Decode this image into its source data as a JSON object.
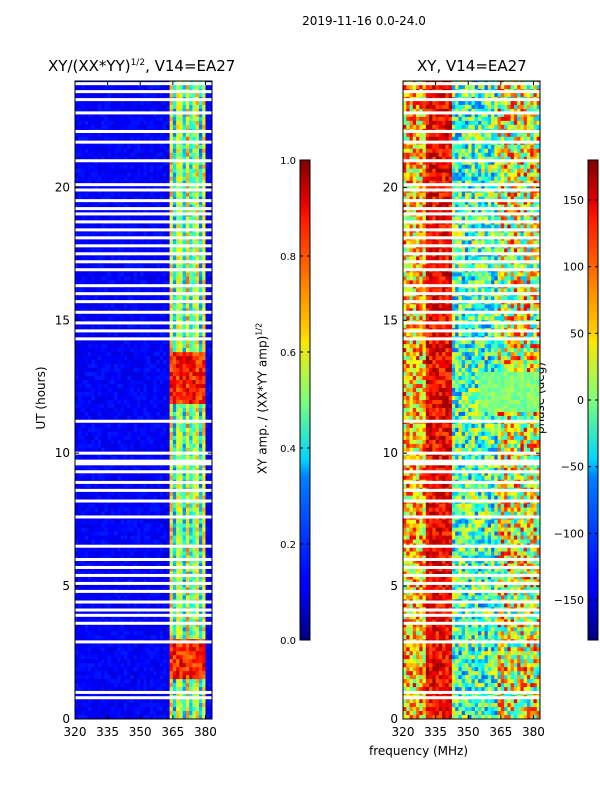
{
  "figure": {
    "suptitle": "2019-11-16 0.0-24.0",
    "xlabel_shared": "frequency (MHz)"
  },
  "chart_data": [
    {
      "type": "heatmap",
      "title_text": "XY/(XX*YY)",
      "title_exponent": "1/2",
      "title_suffix": ", V14=EA27",
      "xlabel": "",
      "ylabel": "UT (hours)",
      "xlim": [
        320,
        383
      ],
      "ylim": [
        0,
        24
      ],
      "xticks": [
        320,
        335,
        350,
        365,
        380
      ],
      "yticks": [
        0,
        5,
        10,
        15,
        20
      ],
      "colormap": "jet",
      "colorbar": {
        "label_text": "XY amp. / (XX*YY amp)",
        "label_exponent": "1/2",
        "range": [
          0.0,
          1.0
        ],
        "ticks": [
          "0.0",
          "0.2",
          "0.4",
          "0.6",
          "0.8",
          "1.0"
        ]
      },
      "features": {
        "background_value": 0.12,
        "high_band_freq_range_mhz": [
          363,
          380
        ],
        "high_band_typical_value": 0.5,
        "peak_value": 0.95,
        "peak_ut_range_hours": [
          11.8,
          13.8
        ],
        "flagged_ut_hours": [
          0.8,
          1.0,
          2.9,
          3.6,
          3.9,
          4.1,
          4.4,
          4.8,
          5.1,
          5.4,
          5.7,
          6.0,
          6.5,
          7.6,
          8.2,
          8.6,
          8.9,
          9.3,
          9.6,
          9.7,
          10.0,
          11.2,
          14.3,
          14.6,
          14.9,
          15.3,
          15.7,
          16.0,
          16.3,
          16.9,
          17.2,
          17.5,
          17.8,
          18.1,
          18.4,
          18.7,
          19.0,
          19.2,
          19.5,
          19.9,
          20.1,
          21.0,
          21.7,
          22.1,
          22.8,
          23.3,
          23.6,
          23.9
        ]
      }
    },
    {
      "type": "heatmap",
      "title_text": "XY, V14=EA27",
      "xlabel": "frequency (MHz)",
      "ylabel": "",
      "xlim": [
        320,
        383
      ],
      "ylim": [
        0,
        24
      ],
      "xticks": [
        320,
        335,
        350,
        365,
        380
      ],
      "yticks": [
        0,
        5,
        10,
        15,
        20
      ],
      "colormap": "jet",
      "colorbar": {
        "label_text": "phase (deg)",
        "range": [
          -180,
          180
        ],
        "ticks": [
          "−150",
          "−100",
          "−50",
          "0",
          "50",
          "100",
          "150"
        ]
      },
      "features": {
        "red_band_freq_range_mhz": [
          330,
          342
        ],
        "flagged_ut_hours": [
          0.8,
          1.0,
          2.9,
          3.6,
          3.9,
          4.1,
          4.4,
          4.8,
          5.1,
          5.4,
          5.7,
          6.0,
          6.5,
          7.6,
          8.2,
          8.6,
          8.9,
          9.3,
          9.6,
          9.7,
          10.0,
          11.2,
          14.3,
          14.6,
          14.9,
          15.3,
          15.7,
          16.0,
          16.3,
          16.9,
          17.2,
          17.5,
          17.8,
          18.1,
          18.4,
          18.7,
          19.0,
          19.2,
          19.5,
          19.9,
          20.1,
          21.0,
          21.7,
          22.1,
          22.8,
          23.3,
          23.6,
          23.9
        ]
      }
    }
  ]
}
